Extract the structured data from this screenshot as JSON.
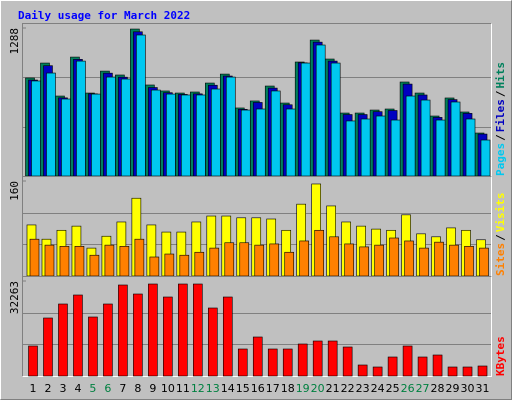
{
  "chart_data": [
    {
      "type": "bar",
      "title": "Daily usage for March 2022",
      "legend_separator": "/",
      "ylim": [
        0,
        1288
      ],
      "yticks": [
        1288
      ],
      "series": [
        {
          "name": "Pages",
          "color": "#00c8f0",
          "values": [
            827,
            896,
            670,
            1000,
            713,
            861,
            844,
            1227,
            748,
            713,
            705,
            705,
            757,
            861,
            574,
            583,
            740,
            583,
            983,
            1140,
            983,
            479,
            496,
            522,
            487,
            696,
            661,
            487,
            644,
            496,
            313
          ]
        },
        {
          "name": "Files",
          "color": "#0000c0",
          "values": [
            835,
            960,
            680,
            1015,
            715,
            895,
            860,
            1255,
            770,
            725,
            710,
            715,
            790,
            870,
            580,
            640,
            765,
            620,
            985,
            1165,
            1000,
            535,
            535,
            560,
            570,
            800,
            705,
            510,
            665,
            545,
            365
          ]
        },
        {
          "name": "Hits",
          "color": "#00805c",
          "values": [
            853,
            983,
            696,
            1035,
            722,
            913,
            879,
            1279,
            792,
            740,
            722,
            731,
            809,
            887,
            592,
            653,
            783,
            635,
            992,
            1183,
            1018,
            548,
            548,
            574,
            583,
            818,
            722,
            522,
            679,
            557,
            374
          ]
        }
      ]
    },
    {
      "type": "bar",
      "legend_separator": "/",
      "ylim": [
        0,
        160
      ],
      "yticks": [
        160
      ],
      "series": [
        {
          "name": "Sites",
          "color": "#ff8000",
          "values": [
            62,
            52,
            50,
            50,
            35,
            52,
            50,
            62,
            32,
            37,
            35,
            40,
            47,
            56,
            56,
            52,
            54,
            40,
            59,
            77,
            66,
            54,
            49,
            52,
            64,
            59,
            47,
            57,
            52,
            50,
            47
          ]
        },
        {
          "name": "Visits",
          "color": "#ffff00",
          "values": [
            86,
            62,
            77,
            84,
            47,
            67,
            91,
            131,
            86,
            74,
            74,
            91,
            101,
            101,
            98,
            98,
            96,
            77,
            121,
            155,
            118,
            91,
            84,
            79,
            77,
            103,
            71,
            66,
            81,
            77,
            61
          ]
        }
      ]
    },
    {
      "type": "bar",
      "ylim": [
        0,
        32263
      ],
      "yticks": [
        32263
      ],
      "categories": [
        "1",
        "2",
        "3",
        "4",
        "5",
        "6",
        "7",
        "8",
        "9",
        "10",
        "11",
        "12",
        "13",
        "14",
        "15",
        "16",
        "17",
        "18",
        "19",
        "20",
        "21",
        "22",
        "23",
        "24",
        "25",
        "26",
        "27",
        "28",
        "29",
        "30",
        "31"
      ],
      "highlight": [
        4,
        5,
        11,
        12,
        18,
        19,
        25,
        26
      ],
      "highlight_color": "#008040",
      "series": [
        {
          "name": "KBytes",
          "color": "#ff0000",
          "values": [
            10188,
            19697,
            24451,
            27508,
            20036,
            24451,
            30904,
            27847,
            31243,
            26828,
            31243,
            31243,
            23093,
            26828,
            9169,
            13244,
            9169,
            9169,
            10867,
            11886,
            11886,
            9848,
            3736,
            3056,
            6452,
            10188,
            6452,
            7132,
            3056,
            3056,
            3396
          ]
        }
      ]
    }
  ]
}
